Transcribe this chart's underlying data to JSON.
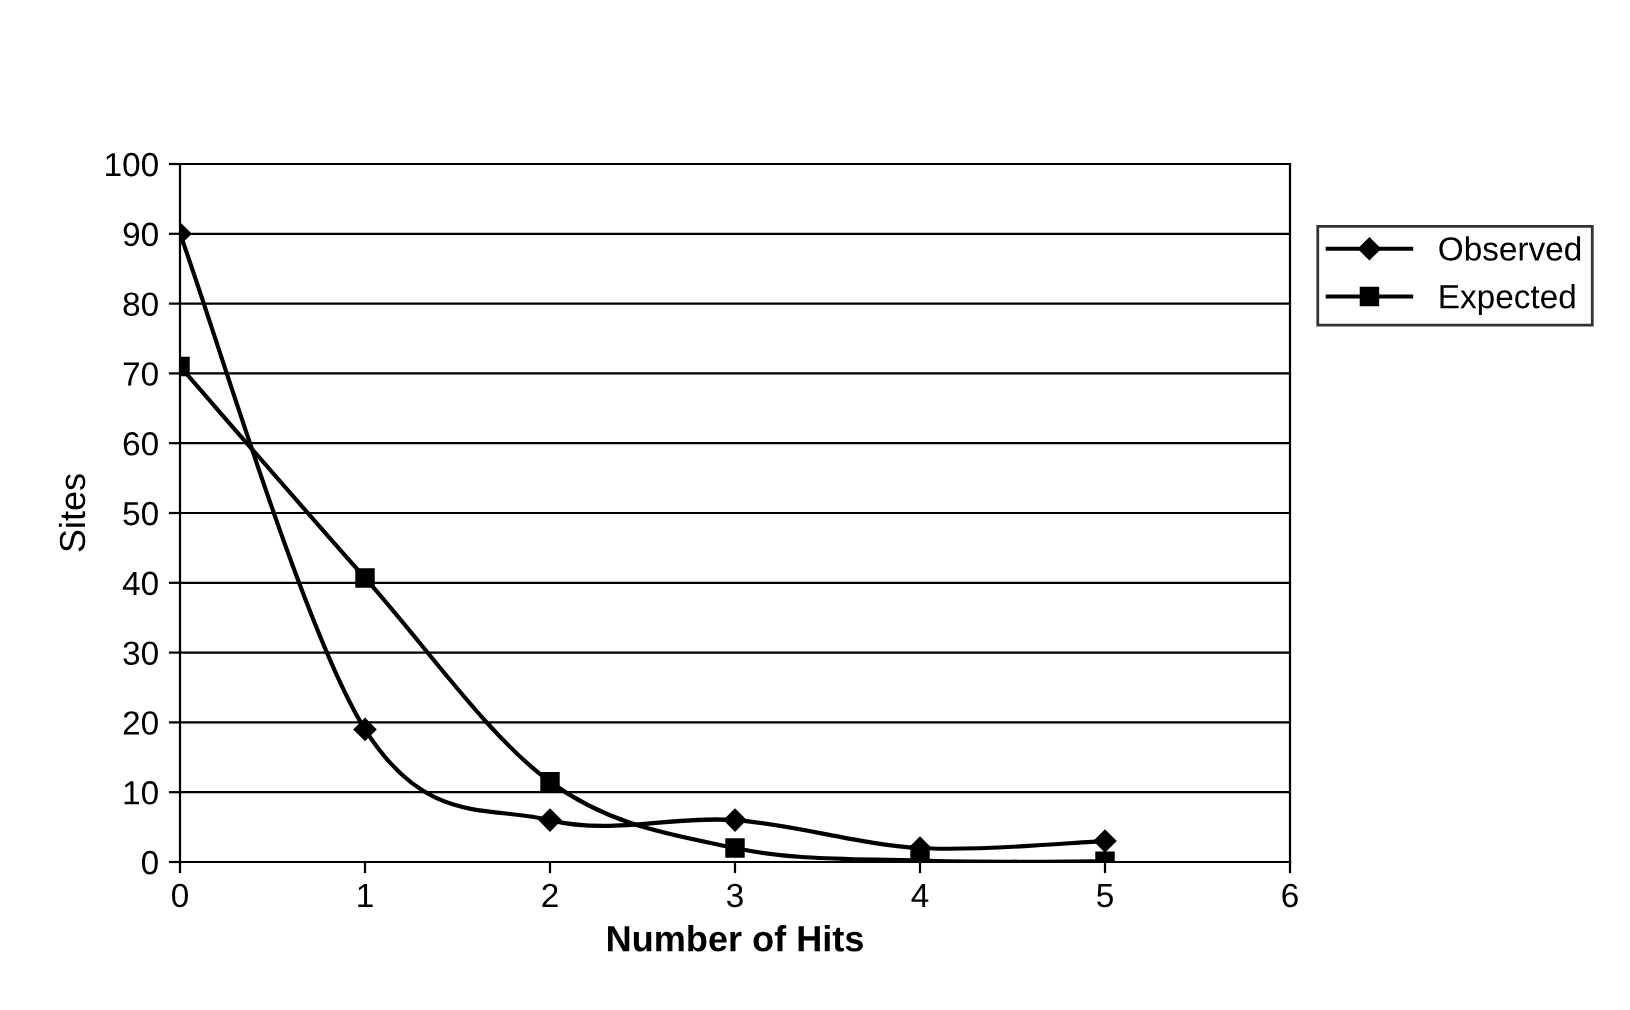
{
  "chart_data": {
    "type": "line",
    "xlabel": "Number of Hits",
    "ylabel": "Sites",
    "x": [
      0,
      1,
      2,
      3,
      4,
      5
    ],
    "series": [
      {
        "name": "Observed",
        "color": "#000000",
        "marker": "diamond",
        "values": [
          90,
          19,
          6,
          6,
          2,
          3
        ]
      },
      {
        "name": "Expected",
        "color": "#000000",
        "marker": "square",
        "values": [
          71,
          40.7,
          11.5,
          2,
          0.2,
          0.1
        ]
      }
    ],
    "xlim": [
      0,
      6
    ],
    "xticks": [
      0,
      1,
      2,
      3,
      4,
      5,
      6
    ],
    "ylim": [
      0,
      100
    ],
    "yticks": [
      0,
      10,
      20,
      30,
      40,
      50,
      60,
      70,
      80,
      90,
      100
    ],
    "grid": "y",
    "legend": "right",
    "line_style": "solid"
  }
}
